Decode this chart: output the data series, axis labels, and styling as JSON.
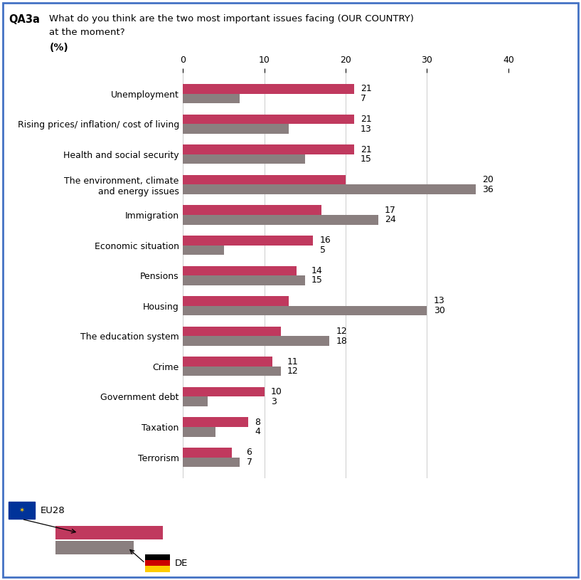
{
  "title_bold": "QA3a",
  "title_text": "What do you think are the two most important issues facing (OUR COUNTRY)\nat the moment?",
  "ylabel_text": "(%)",
  "categories": [
    "Unemployment",
    "Rising prices/ inflation/ cost of living",
    "Health and social security",
    "The environment, climate\nand energy issues",
    "Immigration",
    "Economic situation",
    "Pensions",
    "Housing",
    "The education system",
    "Crime",
    "Government debt",
    "Taxation",
    "Terrorism"
  ],
  "eu28_values": [
    21,
    21,
    21,
    20,
    17,
    16,
    14,
    13,
    12,
    11,
    10,
    8,
    6
  ],
  "de_values": [
    7,
    13,
    15,
    36,
    24,
    5,
    15,
    30,
    18,
    12,
    3,
    4,
    7
  ],
  "eu28_color": "#c0395e",
  "de_color": "#8a7f7f",
  "bar_height": 0.32,
  "xlim": [
    0,
    40
  ],
  "xticks": [
    0,
    10,
    20,
    30,
    40
  ],
  "border_color": "#4472c4",
  "background_color": "#ffffff",
  "text_color": "#000000",
  "annotation_fontsize": 9,
  "label_fontsize": 9,
  "tick_fontsize": 9
}
